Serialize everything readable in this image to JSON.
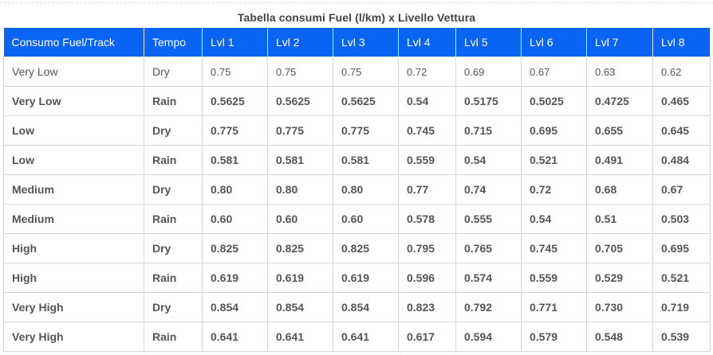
{
  "title": "Tabella consumi Fuel (l/km) x Livello Vettura",
  "headers": [
    "Consumo Fuel/Track",
    "Tempo",
    "Lvl 1",
    "Lvl 2",
    "Lvl 3",
    "Lvl 4",
    "Lvl 5",
    "Lvl 6",
    "Lvl 7",
    "Lvl 8"
  ],
  "rows": [
    {
      "track": "Very Low",
      "tempo": "Dry",
      "values": [
        "0.75",
        "0.75",
        "0.75",
        "0.72",
        "0.69",
        "0.67",
        "0.63",
        "0.62"
      ]
    },
    {
      "track": "Very Low",
      "tempo": "Rain",
      "values": [
        "0.5625",
        "0.5625",
        "0.5625",
        "0.54",
        "0.5175",
        "0.5025",
        "0.4725",
        "0.465"
      ]
    },
    {
      "track": "Low",
      "tempo": "Dry",
      "values": [
        "0.775",
        "0.775",
        "0.775",
        "0.745",
        "0.715",
        "0.695",
        "0.655",
        "0.645"
      ]
    },
    {
      "track": "Low",
      "tempo": "Rain",
      "values": [
        "0.581",
        "0.581",
        "0.581",
        "0.559",
        "0.54",
        "0.521",
        "0.491",
        "0.484"
      ]
    },
    {
      "track": "Medium",
      "tempo": "Dry",
      "values": [
        "0.80",
        "0.80",
        "0.80",
        "0.77",
        "0.74",
        "0.72",
        "0.68",
        "0.67"
      ]
    },
    {
      "track": "Medium",
      "tempo": "Rain",
      "values": [
        "0.60",
        "0.60",
        "0.60",
        "0.578",
        "0.555",
        "0.54",
        "0.51",
        "0.503"
      ]
    },
    {
      "track": "High",
      "tempo": "Dry",
      "values": [
        "0.825",
        "0.825",
        "0.825",
        "0.795",
        "0.765",
        "0.745",
        "0.705",
        "0.695"
      ]
    },
    {
      "track": "High",
      "tempo": "Rain",
      "values": [
        "0.619",
        "0.619",
        "0.619",
        "0.596",
        "0.574",
        "0.559",
        "0.529",
        "0.521"
      ]
    },
    {
      "track": "Very High",
      "tempo": "Dry",
      "values": [
        "0.854",
        "0.854",
        "0.854",
        "0.823",
        "0.792",
        "0.771",
        "0.730",
        "0.719"
      ]
    },
    {
      "track": "Very High",
      "tempo": "Rain",
      "values": [
        "0.641",
        "0.641",
        "0.641",
        "0.617",
        "0.594",
        "0.579",
        "0.548",
        "0.539"
      ]
    }
  ],
  "colors": {
    "header_bg": "#0a64f3",
    "header_text": "#ffffff",
    "cell_text": "#555555",
    "grid": "#d6d6d6"
  }
}
